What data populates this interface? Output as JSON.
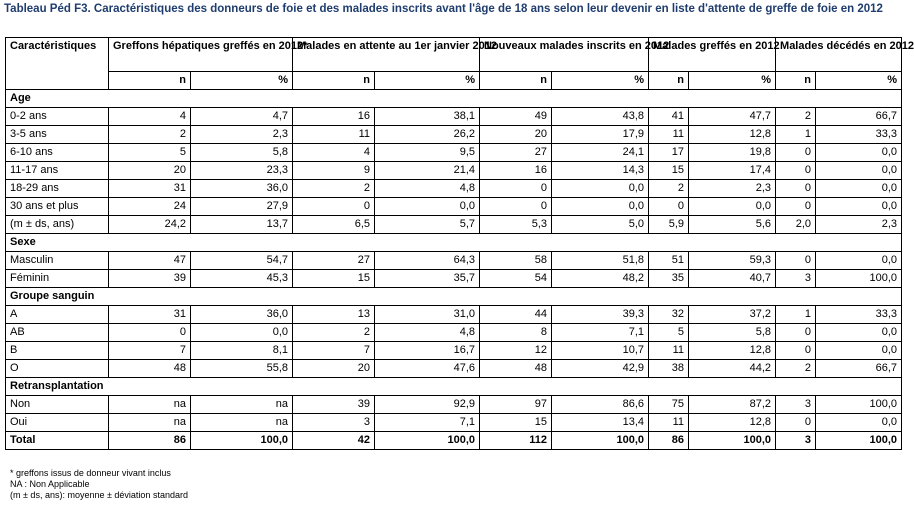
{
  "title": "Tableau Péd F3. Caractéristiques des donneurs de foie et des malades inscrits avant l'âge de 18 ans selon leur devenir en liste d'attente de greffe de foie en 2012",
  "table": {
    "header": {
      "col0": "Caractéristiques",
      "groups": [
        "Greffons hépatiques greffés en 2012*",
        "Malades en attente au 1er janvier 2012",
        "Nouveaux malades inscrits en 2012",
        "Malades greffés en 2012",
        "Malades décédés en 2012"
      ],
      "n": "n",
      "pct": "%"
    },
    "sections": [
      {
        "name": "Age",
        "rows": [
          {
            "label": "0-2 ans",
            "v": [
              "4",
              "4,7",
              "16",
              "38,1",
              "49",
              "43,8",
              "41",
              "47,7",
              "2",
              "66,7"
            ]
          },
          {
            "label": "3-5 ans",
            "v": [
              "2",
              "2,3",
              "11",
              "26,2",
              "20",
              "17,9",
              "11",
              "12,8",
              "1",
              "33,3"
            ]
          },
          {
            "label": "6-10 ans",
            "v": [
              "5",
              "5,8",
              "4",
              "9,5",
              "27",
              "24,1",
              "17",
              "19,8",
              "0",
              "0,0"
            ]
          },
          {
            "label": "11-17 ans",
            "v": [
              "20",
              "23,3",
              "9",
              "21,4",
              "16",
              "14,3",
              "15",
              "17,4",
              "0",
              "0,0"
            ]
          },
          {
            "label": "18-29 ans",
            "v": [
              "31",
              "36,0",
              "2",
              "4,8",
              "0",
              "0,0",
              "2",
              "2,3",
              "0",
              "0,0"
            ]
          },
          {
            "label": "30 ans et plus",
            "v": [
              "24",
              "27,9",
              "0",
              "0,0",
              "0",
              "0,0",
              "0",
              "0,0",
              "0",
              "0,0"
            ]
          },
          {
            "label": "(m ± ds, ans)",
            "v": [
              "24,2",
              "13,7",
              "6,5",
              "5,7",
              "5,3",
              "5,0",
              "5,9",
              "5,6",
              "2,0",
              "2,3"
            ]
          }
        ]
      },
      {
        "name": "Sexe",
        "rows": [
          {
            "label": "Masculin",
            "v": [
              "47",
              "54,7",
              "27",
              "64,3",
              "58",
              "51,8",
              "51",
              "59,3",
              "0",
              "0,0"
            ]
          },
          {
            "label": "Féminin",
            "v": [
              "39",
              "45,3",
              "15",
              "35,7",
              "54",
              "48,2",
              "35",
              "40,7",
              "3",
              "100,0"
            ]
          }
        ]
      },
      {
        "name": "Groupe sanguin",
        "rows": [
          {
            "label": "A",
            "v": [
              "31",
              "36,0",
              "13",
              "31,0",
              "44",
              "39,3",
              "32",
              "37,2",
              "1",
              "33,3"
            ]
          },
          {
            "label": "AB",
            "v": [
              "0",
              "0,0",
              "2",
              "4,8",
              "8",
              "7,1",
              "5",
              "5,8",
              "0",
              "0,0"
            ]
          },
          {
            "label": "B",
            "v": [
              "7",
              "8,1",
              "7",
              "16,7",
              "12",
              "10,7",
              "11",
              "12,8",
              "0",
              "0,0"
            ]
          },
          {
            "label": "O",
            "v": [
              "48",
              "55,8",
              "20",
              "47,6",
              "48",
              "42,9",
              "38",
              "44,2",
              "2",
              "66,7"
            ]
          }
        ]
      },
      {
        "name": "Retransplantation",
        "rows": [
          {
            "label": "Non",
            "v": [
              "na",
              "na",
              "39",
              "92,9",
              "97",
              "86,6",
              "75",
              "87,2",
              "3",
              "100,0"
            ]
          },
          {
            "label": "Oui",
            "v": [
              "na",
              "na",
              "3",
              "7,1",
              "15",
              "13,4",
              "11",
              "12,8",
              "0",
              "0,0"
            ]
          }
        ]
      }
    ],
    "total": {
      "label": "Total",
      "v": [
        "86",
        "100,0",
        "42",
        "100,0",
        "112",
        "100,0",
        "86",
        "100,0",
        "3",
        "100,0"
      ]
    }
  },
  "notes": [
    "* greffons issus de donneur vivant inclus",
    "NA : Non Applicable",
    "(m ± ds, ans): moyenne ± déviation standard"
  ]
}
